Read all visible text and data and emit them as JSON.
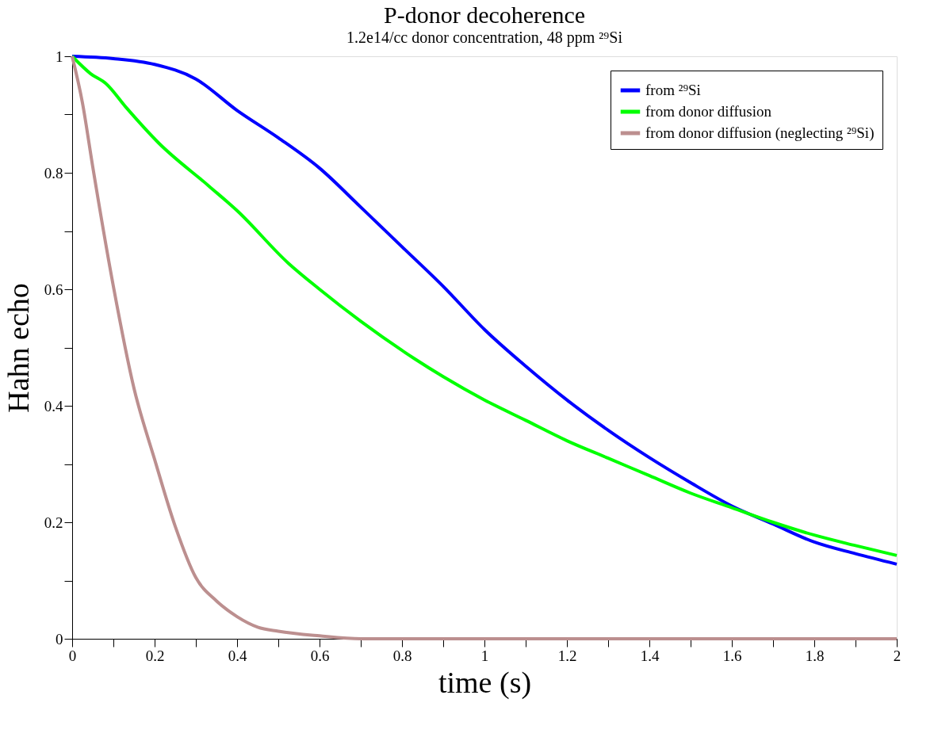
{
  "chart_data": {
    "type": "line",
    "title": "P-donor decoherence",
    "subtitle": "1.2e14/cc donor concentration, 48 ppm ²⁹Si",
    "xlabel": "time (s)",
    "ylabel": "Hahn echo",
    "xlim": [
      0,
      2
    ],
    "ylim": [
      0,
      1
    ],
    "xticks": [
      0,
      {
        "value": 0.1,
        "label": null
      },
      0.2,
      {
        "value": 0.3,
        "label": null
      },
      0.4,
      {
        "value": 0.5,
        "label": null
      },
      0.6,
      {
        "value": 0.7,
        "label": null
      },
      0.8,
      {
        "value": 0.9,
        "label": null
      },
      1,
      {
        "value": 1.1,
        "label": null
      },
      1.2,
      {
        "value": 1.3,
        "label": null
      },
      1.4,
      {
        "value": 1.5,
        "label": null
      },
      1.6,
      {
        "value": 1.7,
        "label": null
      },
      1.8,
      {
        "value": 1.9,
        "label": null
      },
      2
    ],
    "yticks": [
      0,
      {
        "value": 0.1,
        "label": null
      },
      0.2,
      {
        "value": 0.3,
        "label": null
      },
      0.4,
      {
        "value": 0.5,
        "label": null
      },
      0.6,
      {
        "value": 0.7,
        "label": null
      },
      0.8,
      {
        "value": 0.9,
        "label": null
      },
      1
    ],
    "grid": false,
    "legend": "top right",
    "marker": "none",
    "line_style": "solid",
    "series": [
      {
        "name": "from ²⁹Si",
        "color": "#0000ff",
        "x": [
          0,
          0.1,
          0.2,
          0.3,
          0.4,
          0.5,
          0.6,
          0.7,
          0.8,
          0.9,
          1.0,
          1.1,
          1.2,
          1.3,
          1.4,
          1.5,
          1.6,
          1.7,
          1.8,
          1.9,
          2.0
        ],
        "values": [
          1.0,
          0.996,
          0.986,
          0.961,
          0.907,
          0.86,
          0.808,
          0.741,
          0.673,
          0.605,
          0.531,
          0.468,
          0.41,
          0.358,
          0.311,
          0.268,
          0.228,
          0.197,
          0.166,
          0.146,
          0.128
        ]
      },
      {
        "name": "from donor diffusion",
        "color": "#00ff00",
        "x": [
          0,
          0.045,
          0.082,
          0.131,
          0.21,
          0.332,
          0.4,
          0.524,
          0.6,
          0.7,
          0.83,
          0.9,
          1.0,
          1.1,
          1.2,
          1.3,
          1.4,
          1.5,
          1.6,
          1.7,
          1.8,
          1.9,
          2.0
        ],
        "values": [
          1.0,
          0.97,
          0.953,
          0.912,
          0.851,
          0.777,
          0.735,
          0.645,
          0.6,
          0.545,
          0.481,
          0.45,
          0.41,
          0.375,
          0.34,
          0.31,
          0.28,
          0.25,
          0.225,
          0.2,
          0.178,
          0.16,
          0.143
        ]
      },
      {
        "name": "from donor diffusion (neglecting ²⁹Si)",
        "color": "#bc8f8f",
        "x": [
          0,
          0.025,
          0.05,
          0.1,
          0.15,
          0.2,
          0.25,
          0.3,
          0.35,
          0.4,
          0.45,
          0.5,
          0.6,
          0.7,
          2.0
        ],
        "values": [
          1.0,
          0.92,
          0.81,
          0.605,
          0.43,
          0.308,
          0.193,
          0.105,
          0.065,
          0.038,
          0.02,
          0.013,
          0.005,
          0,
          0
        ]
      }
    ]
  }
}
